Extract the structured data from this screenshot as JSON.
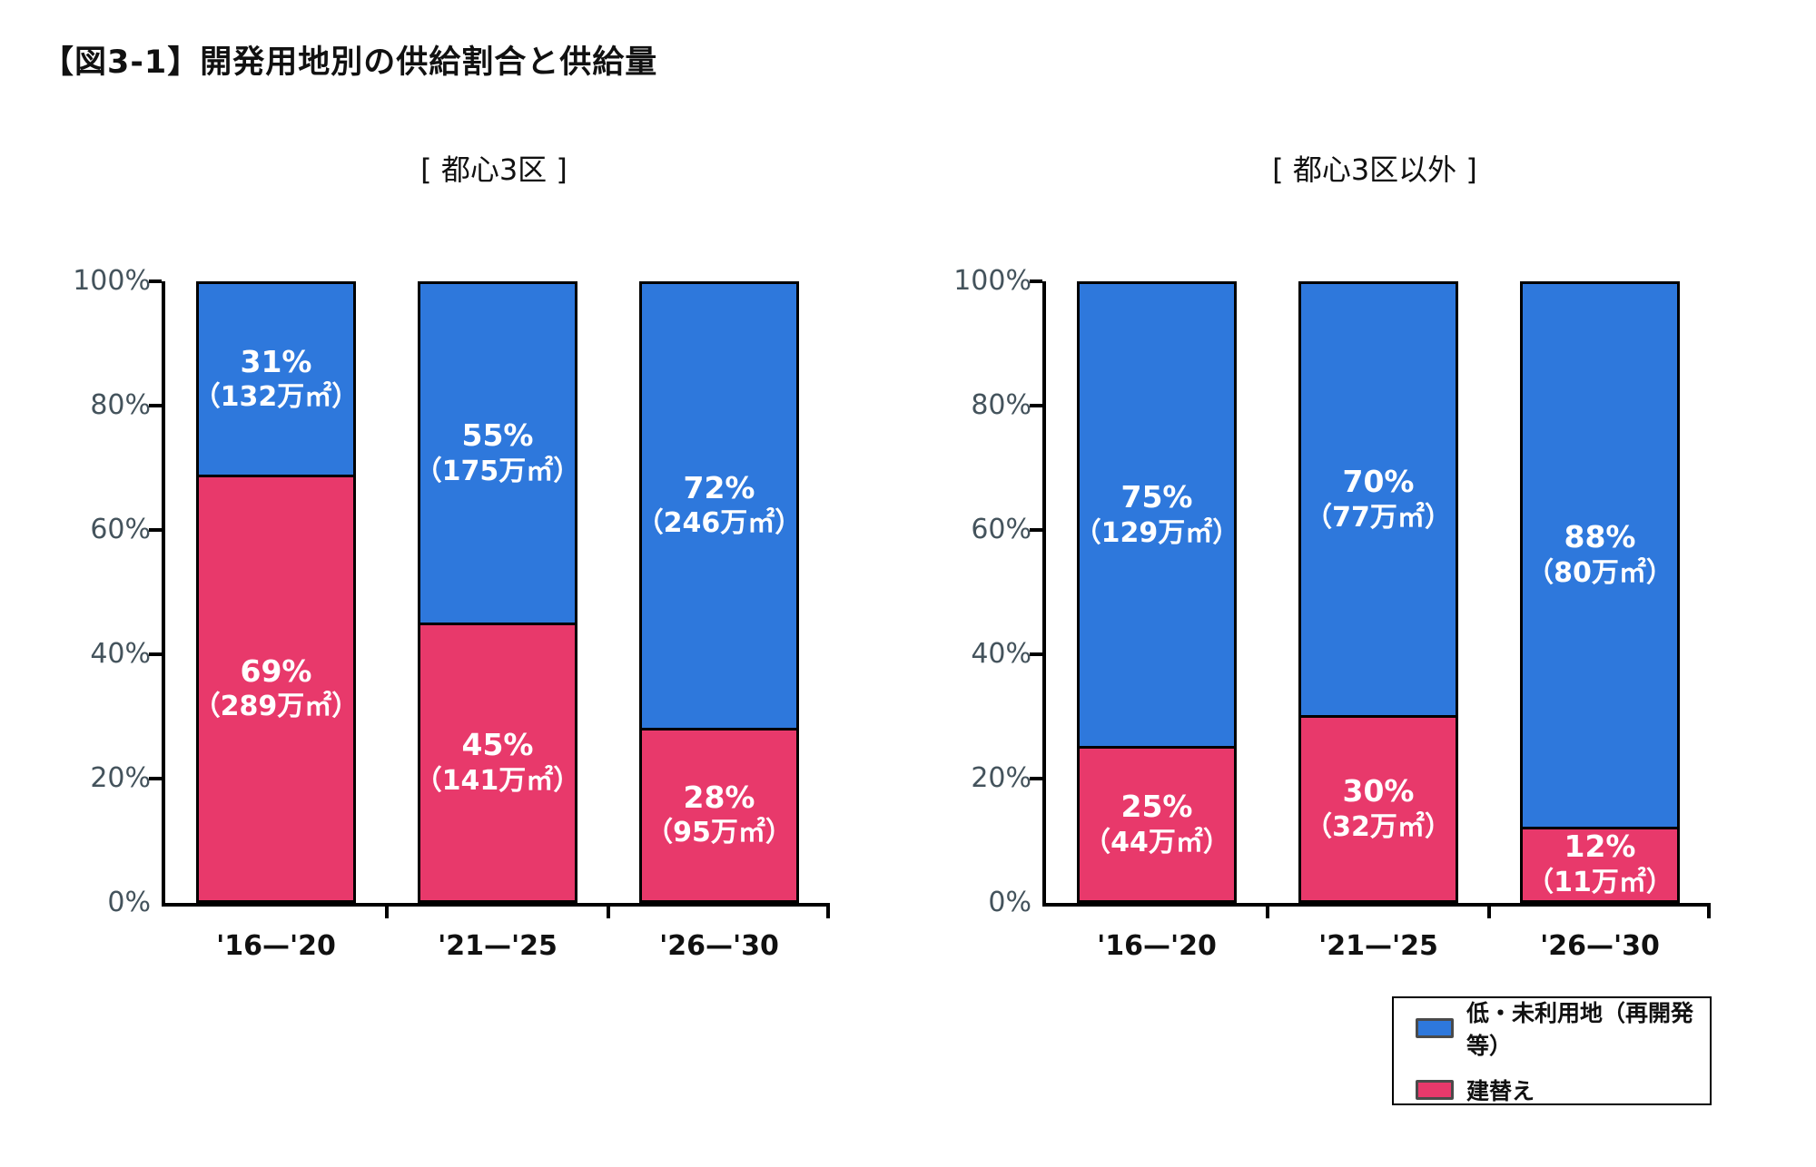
{
  "title": "【図3-1】開発用地別の供給割合と供給量",
  "colors": {
    "blue": "#2E78DC",
    "red": "#E8396B",
    "axis_label": "#44535C"
  },
  "legend": {
    "items": [
      {
        "label": "低・未利用地（再開発等）",
        "color": "#2E78DC"
      },
      {
        "label": "建替え",
        "color": "#E8396B"
      }
    ]
  },
  "chart_data": [
    {
      "type": "bar",
      "stacked": true,
      "title": "[ 都心3区 ]",
      "categories": [
        "'16—'20",
        "'21—'25",
        "'26—'30"
      ],
      "ylim": [
        0,
        100
      ],
      "y_ticks": [
        "100%",
        "80%",
        "60%",
        "40%",
        "20%",
        "0%"
      ],
      "grid": false,
      "legend_position": "bottom-right",
      "series": [
        {
          "name": "低・未利用地（再開発等）",
          "color": "#2E78DC",
          "position": "top",
          "values_pct": [
            31,
            55,
            72
          ],
          "area_labels": [
            "（132万㎡）",
            "（175万㎡）",
            "（246万㎡）"
          ]
        },
        {
          "name": "建替え",
          "color": "#E8396B",
          "position": "bottom",
          "values_pct": [
            69,
            45,
            28
          ],
          "area_labels": [
            "（289万㎡）",
            "（141万㎡）",
            "（95万㎡）"
          ]
        }
      ]
    },
    {
      "type": "bar",
      "stacked": true,
      "title": "[ 都心3区以外 ]",
      "categories": [
        "'16—'20",
        "'21—'25",
        "'26—'30"
      ],
      "ylim": [
        0,
        100
      ],
      "y_ticks": [
        "100%",
        "80%",
        "60%",
        "40%",
        "20%",
        "0%"
      ],
      "grid": false,
      "legend_position": "bottom-right",
      "series": [
        {
          "name": "低・未利用地（再開発等）",
          "color": "#2E78DC",
          "position": "top",
          "values_pct": [
            75,
            70,
            88
          ],
          "area_labels": [
            "（129万㎡）",
            "（77万㎡）",
            "（80万㎡）"
          ]
        },
        {
          "name": "建替え",
          "color": "#E8396B",
          "position": "bottom",
          "values_pct": [
            25,
            30,
            12
          ],
          "area_labels": [
            "（44万㎡）",
            "（32万㎡）",
            "（11万㎡）"
          ]
        }
      ]
    }
  ]
}
